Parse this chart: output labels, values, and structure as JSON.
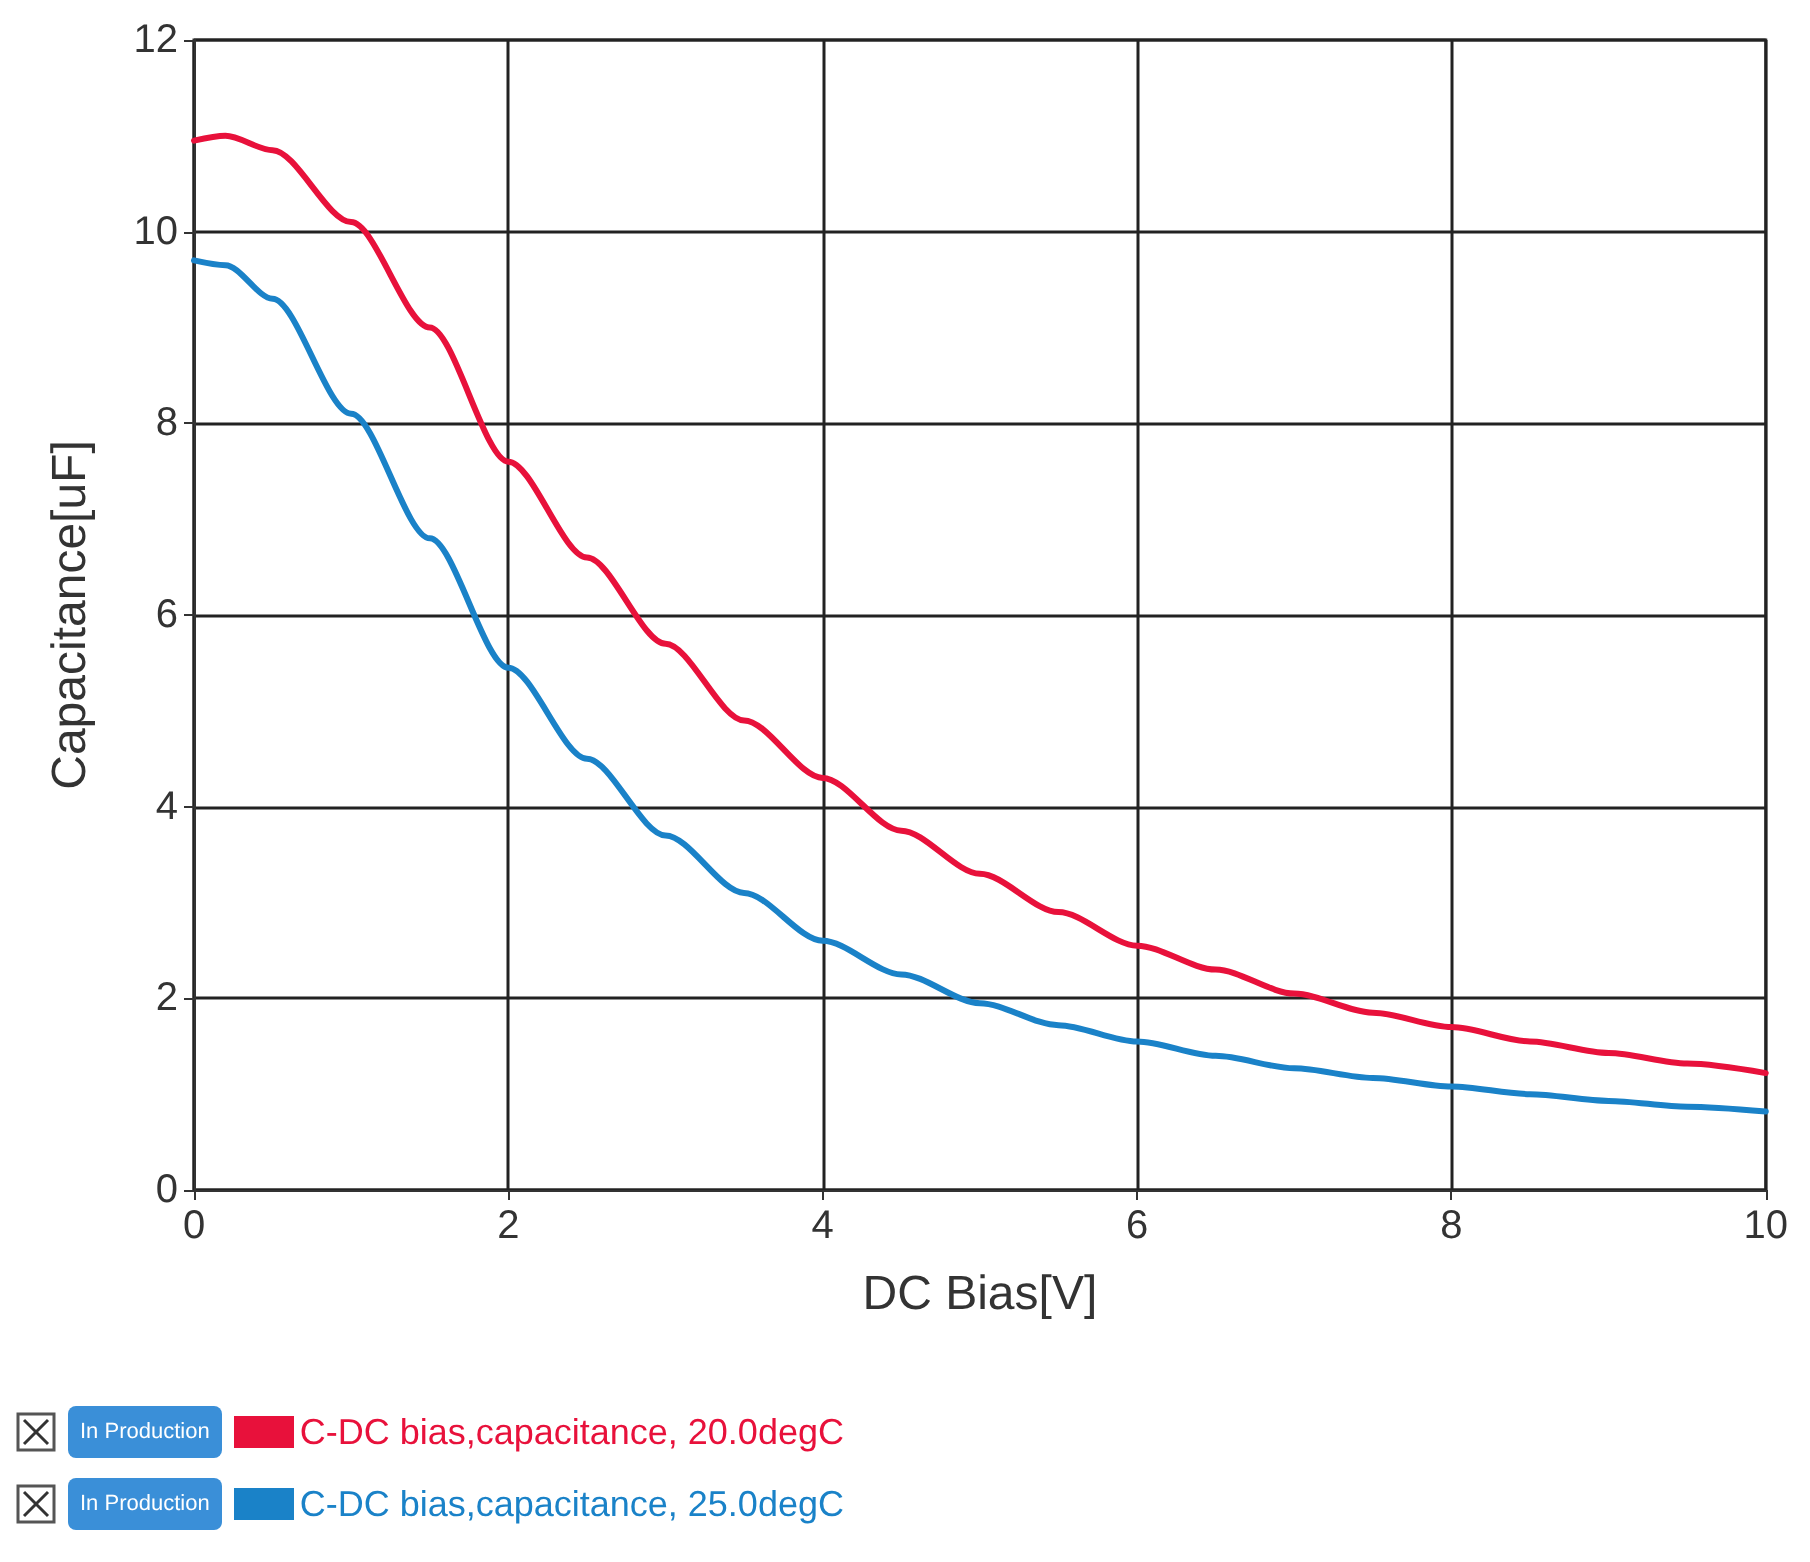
{
  "chart_data": {
    "type": "line",
    "xlabel": "DC Bias[V]",
    "ylabel": "Capacitance[uF]",
    "xlim": [
      0,
      10
    ],
    "xticks": [
      0,
      2,
      4,
      6,
      8,
      10
    ],
    "ylim": [
      0,
      12
    ],
    "yticks": [
      0,
      2,
      4,
      6,
      8,
      10,
      12
    ],
    "grid": true,
    "legend": "bottom",
    "marker": "none",
    "line_style": "solid",
    "annotations": [
      "In Production",
      "In Production"
    ],
    "series": [
      {
        "name": "C-DC bias,capacitance, 20.0degC",
        "color": "#e8113b",
        "x": [
          0,
          0.2,
          0.5,
          1,
          1.5,
          2,
          2.5,
          3,
          3.5,
          4,
          4.5,
          5,
          5.5,
          6,
          6.5,
          7,
          7.5,
          8,
          8.5,
          9,
          9.5,
          10
        ],
        "values": [
          10.95,
          11.0,
          10.85,
          10.1,
          9.0,
          7.6,
          6.6,
          5.7,
          4.9,
          4.3,
          3.75,
          3.3,
          2.9,
          2.55,
          2.3,
          2.05,
          1.85,
          1.7,
          1.55,
          1.43,
          1.32,
          1.22
        ]
      },
      {
        "name": "C-DC bias,capacitance, 25.0degC",
        "color": "#1a82c8",
        "x": [
          0,
          0.2,
          0.5,
          1,
          1.5,
          2,
          2.5,
          3,
          3.5,
          4,
          4.5,
          5,
          5.5,
          6,
          6.5,
          7,
          7.5,
          8,
          8.5,
          9,
          9.5,
          10
        ],
        "values": [
          9.7,
          9.65,
          9.3,
          8.1,
          6.8,
          5.45,
          4.5,
          3.7,
          3.1,
          2.6,
          2.25,
          1.95,
          1.72,
          1.55,
          1.4,
          1.27,
          1.17,
          1.08,
          1.0,
          0.93,
          0.87,
          0.82
        ]
      }
    ]
  }
}
